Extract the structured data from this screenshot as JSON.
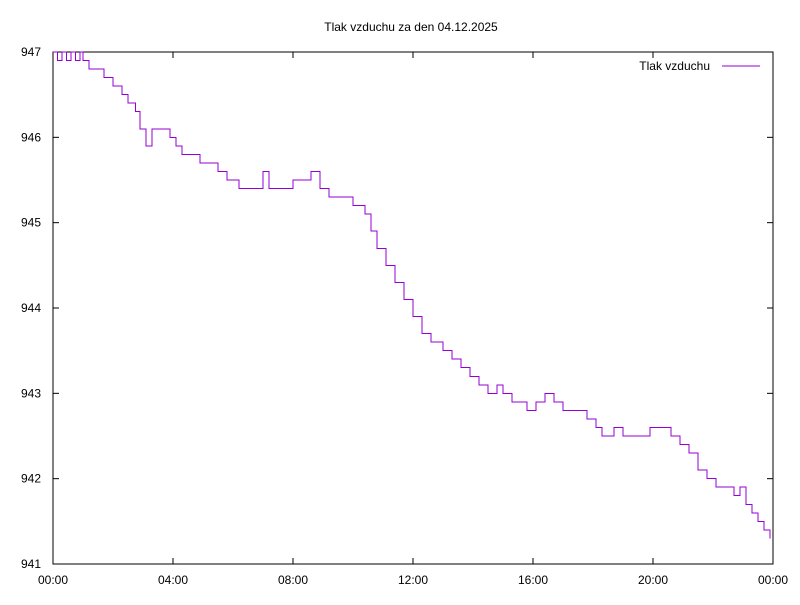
{
  "chart_data": {
    "type": "line",
    "title": "Tlak vzduchu za den 04.12.2025",
    "xlabel": "",
    "ylabel": "",
    "x_unit": "hours since 00:00",
    "xlim": [
      0,
      24
    ],
    "ylim": [
      941,
      947
    ],
    "x_ticks": [
      {
        "value": 0,
        "label": "00:00"
      },
      {
        "value": 4,
        "label": "04:00"
      },
      {
        "value": 8,
        "label": "08:00"
      },
      {
        "value": 12,
        "label": "12:00"
      },
      {
        "value": 16,
        "label": "16:00"
      },
      {
        "value": 20,
        "label": "20:00"
      },
      {
        "value": 24,
        "label": "00:00"
      }
    ],
    "y_ticks": [
      {
        "value": 941,
        "label": "941"
      },
      {
        "value": 942,
        "label": "942"
      },
      {
        "value": 943,
        "label": "943"
      },
      {
        "value": 944,
        "label": "944"
      },
      {
        "value": 945,
        "label": "945"
      },
      {
        "value": 946,
        "label": "946"
      },
      {
        "value": 947,
        "label": "947"
      }
    ],
    "grid": false,
    "legend_position": "top-right",
    "series": [
      {
        "name": "Tlak vzduchu",
        "color": "#9400d3",
        "points": [
          [
            0.0,
            947.0
          ],
          [
            0.15,
            946.9
          ],
          [
            0.3,
            947.0
          ],
          [
            0.45,
            946.9
          ],
          [
            0.6,
            947.0
          ],
          [
            0.75,
            946.9
          ],
          [
            0.9,
            947.0
          ],
          [
            1.0,
            946.9
          ],
          [
            1.2,
            946.8
          ],
          [
            1.5,
            946.8
          ],
          [
            1.7,
            946.7
          ],
          [
            2.0,
            946.6
          ],
          [
            2.3,
            946.5
          ],
          [
            2.5,
            946.4
          ],
          [
            2.75,
            946.3
          ],
          [
            2.9,
            946.1
          ],
          [
            3.1,
            945.9
          ],
          [
            3.3,
            946.1
          ],
          [
            3.8,
            946.1
          ],
          [
            3.9,
            946.0
          ],
          [
            4.1,
            945.9
          ],
          [
            4.3,
            945.8
          ],
          [
            4.6,
            945.8
          ],
          [
            4.9,
            945.7
          ],
          [
            5.2,
            945.7
          ],
          [
            5.5,
            945.6
          ],
          [
            5.8,
            945.5
          ],
          [
            6.2,
            945.4
          ],
          [
            6.9,
            945.4
          ],
          [
            7.0,
            945.6
          ],
          [
            7.2,
            945.4
          ],
          [
            7.8,
            945.4
          ],
          [
            8.0,
            945.5
          ],
          [
            8.3,
            945.5
          ],
          [
            8.6,
            945.6
          ],
          [
            8.9,
            945.4
          ],
          [
            9.2,
            945.3
          ],
          [
            9.6,
            945.3
          ],
          [
            10.0,
            945.2
          ],
          [
            10.4,
            945.1
          ],
          [
            10.6,
            944.9
          ],
          [
            10.8,
            944.7
          ],
          [
            11.1,
            944.5
          ],
          [
            11.4,
            944.3
          ],
          [
            11.7,
            944.1
          ],
          [
            12.0,
            943.9
          ],
          [
            12.3,
            943.7
          ],
          [
            12.6,
            943.6
          ],
          [
            13.0,
            943.5
          ],
          [
            13.3,
            943.4
          ],
          [
            13.6,
            943.3
          ],
          [
            13.9,
            943.2
          ],
          [
            14.2,
            943.1
          ],
          [
            14.5,
            943.0
          ],
          [
            14.8,
            943.1
          ],
          [
            15.0,
            943.0
          ],
          [
            15.3,
            942.9
          ],
          [
            15.6,
            942.9
          ],
          [
            15.8,
            942.8
          ],
          [
            16.1,
            942.9
          ],
          [
            16.4,
            943.0
          ],
          [
            16.7,
            942.9
          ],
          [
            17.0,
            942.8
          ],
          [
            17.4,
            942.8
          ],
          [
            17.8,
            942.7
          ],
          [
            18.1,
            942.6
          ],
          [
            18.3,
            942.5
          ],
          [
            18.7,
            942.6
          ],
          [
            19.0,
            942.5
          ],
          [
            19.6,
            942.5
          ],
          [
            19.9,
            942.6
          ],
          [
            20.3,
            942.6
          ],
          [
            20.6,
            942.5
          ],
          [
            20.9,
            942.4
          ],
          [
            21.2,
            942.3
          ],
          [
            21.5,
            942.1
          ],
          [
            21.8,
            942.0
          ],
          [
            22.1,
            941.9
          ],
          [
            22.4,
            941.9
          ],
          [
            22.7,
            941.8
          ],
          [
            22.9,
            941.9
          ],
          [
            23.1,
            941.7
          ],
          [
            23.3,
            941.6
          ],
          [
            23.5,
            941.5
          ],
          [
            23.7,
            941.4
          ],
          [
            23.9,
            941.3
          ]
        ]
      }
    ]
  }
}
